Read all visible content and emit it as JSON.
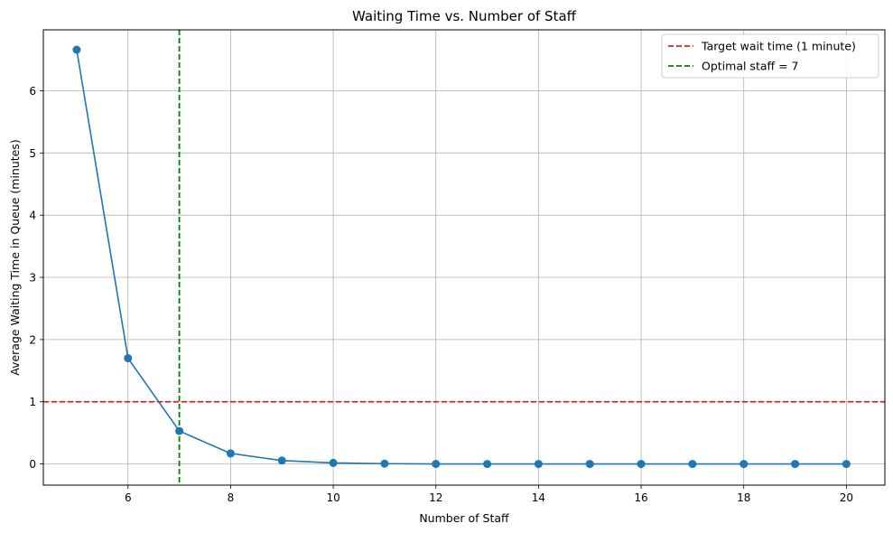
{
  "chart_data": {
    "type": "line",
    "title": "Waiting Time vs. Number of Staff",
    "xlabel": "Number of Staff",
    "ylabel": "Average Waiting Time in Queue (minutes)",
    "xlim": [
      4.35,
      20.75
    ],
    "ylim": [
      -0.34,
      6.98
    ],
    "xticks": [
      6,
      8,
      10,
      12,
      14,
      16,
      18,
      20
    ],
    "yticks": [
      0,
      1,
      2,
      3,
      4,
      5,
      6
    ],
    "grid": true,
    "legend_position": "upper right",
    "series": [
      {
        "x": [
          5,
          6,
          7,
          8,
          9,
          10,
          11,
          12,
          13,
          14,
          15,
          16,
          17,
          18,
          19,
          20
        ],
        "y": [
          6.66,
          1.7,
          0.53,
          0.17,
          0.055,
          0.017,
          0.005,
          0.001,
          0.0,
          0.0,
          0.0,
          0.0,
          0.0,
          0.0,
          0.0,
          0.0
        ],
        "color": "#1f77b4",
        "marker": "circle"
      }
    ],
    "reference_lines": [
      {
        "orientation": "horizontal",
        "value": 1,
        "color": "#d62728",
        "style": "dashed",
        "label": "Target wait time (1 minute)"
      },
      {
        "orientation": "vertical",
        "value": 7,
        "color": "#008000",
        "style": "dashed",
        "label": "Optimal staff = 7"
      }
    ]
  }
}
